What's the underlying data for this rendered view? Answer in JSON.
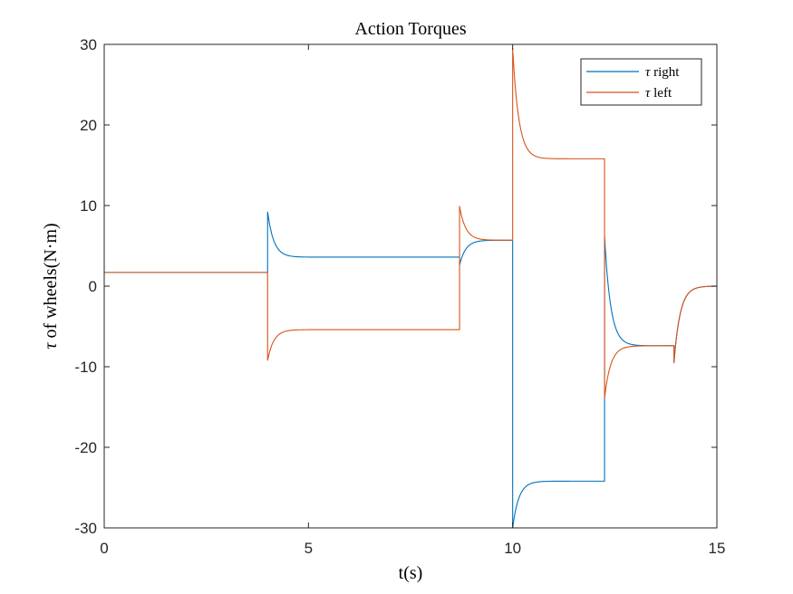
{
  "chart_data": {
    "type": "line",
    "title": "Action Torques",
    "xlabel": "t(s)",
    "ylabel": "τ of wheels(N·m)",
    "xlim": [
      0,
      15
    ],
    "ylim": [
      -30,
      30
    ],
    "xticks": [
      0,
      5,
      10,
      15
    ],
    "yticks": [
      30,
      20,
      10,
      0,
      -10,
      -20,
      -30
    ],
    "xtick_labels": [
      "0",
      "5",
      "10",
      "15"
    ],
    "ytick_labels": [
      "30",
      "20",
      "10",
      "0",
      "-10",
      "-20",
      "-30"
    ],
    "grid": false,
    "legend_location": "top-right",
    "series": [
      {
        "name": "τ right",
        "color": "#0072BD",
        "segments": [
          {
            "t0": 0,
            "t1": 4.0,
            "start": 1.7,
            "end": 1.7
          },
          {
            "t0": 4.0,
            "t1": 8.7,
            "start": 9.2,
            "end": 3.6
          },
          {
            "t0": 8.7,
            "t1": 10.0,
            "start": 2.6,
            "end": 5.7
          },
          {
            "t0": 10.0,
            "t1": 12.25,
            "start": -30.0,
            "end": -24.2
          },
          {
            "t0": 12.25,
            "t1": 13.95,
            "start": 6.2,
            "end": -7.4
          },
          {
            "t0": 13.95,
            "t1": 15.0,
            "start": -9.5,
            "end": 0.0
          }
        ]
      },
      {
        "name": "τ left",
        "color": "#D95319",
        "segments": [
          {
            "t0": 0,
            "t1": 4.0,
            "start": 1.7,
            "end": 1.7
          },
          {
            "t0": 4.0,
            "t1": 8.7,
            "start": -9.2,
            "end": -5.4
          },
          {
            "t0": 8.7,
            "t1": 10.0,
            "start": 9.9,
            "end": 5.7
          },
          {
            "t0": 10.0,
            "t1": 12.25,
            "start": 29.5,
            "end": 15.8
          },
          {
            "t0": 12.25,
            "t1": 13.95,
            "start": -13.9,
            "end": -7.4
          },
          {
            "t0": 13.95,
            "t1": 15.0,
            "start": -9.5,
            "end": 0.0
          }
        ]
      }
    ]
  },
  "legend": {
    "right_symbol": "τ",
    "right_word": "right",
    "left_symbol": "τ",
    "left_word": "left"
  },
  "ylabel_parts": {
    "symbol": "τ",
    "rest": "of wheels(N·m)"
  }
}
